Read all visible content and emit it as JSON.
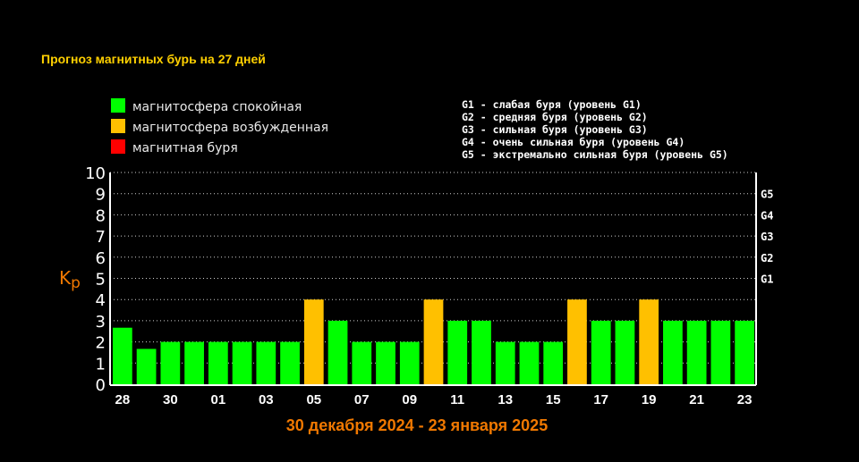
{
  "chart_data": {
    "type": "bar",
    "title": "Прогноз магнитных бурь на 27 дней",
    "xlabel": "30 декабря 2024 - 23 января 2025",
    "ylabel": "Kp",
    "ylim": [
      0,
      10
    ],
    "yticks": [
      "0",
      "1",
      "2",
      "3",
      "4",
      "5",
      "6",
      "7",
      "8",
      "9",
      "10"
    ],
    "grid": true,
    "legend": [
      {
        "label": "магнитосфера спокойная",
        "color": "#00ff00"
      },
      {
        "label": "магнитосфера возбужденная",
        "color": "#ffc000"
      },
      {
        "label": "магнитная буря",
        "color": "#ff0000"
      }
    ],
    "storm_levels": [
      "G1 - слабая буря (уровень G1)",
      "G2 - средняя буря (уровень G2)",
      "G3 - сильная буря (уровень G3)",
      "G4 - очень сильная буря (уровень G4)",
      "G5 - экстремально сильная буря (уровень G5)"
    ],
    "g_ticks": [
      {
        "label": "G1",
        "value": 5
      },
      {
        "label": "G2",
        "value": 6
      },
      {
        "label": "G3",
        "value": 7
      },
      {
        "label": "G4",
        "value": 8
      },
      {
        "label": "G5",
        "value": 9
      }
    ],
    "x_tick_labels": [
      "28",
      "30",
      "01",
      "03",
      "05",
      "07",
      "09",
      "11",
      "13",
      "15",
      "17",
      "19",
      "21",
      "23"
    ],
    "values": [
      2.67,
      1.67,
      2,
      2,
      2,
      2,
      2,
      2,
      4,
      3,
      2,
      2,
      2,
      4,
      3,
      3,
      2,
      2,
      2,
      4,
      3,
      3,
      4,
      3,
      3,
      3,
      3
    ],
    "bar_colors": [
      "#00ff00",
      "#00ff00",
      "#00ff00",
      "#00ff00",
      "#00ff00",
      "#00ff00",
      "#00ff00",
      "#00ff00",
      "#ffc000",
      "#00ff00",
      "#00ff00",
      "#00ff00",
      "#00ff00",
      "#ffc000",
      "#00ff00",
      "#00ff00",
      "#00ff00",
      "#00ff00",
      "#00ff00",
      "#ffc000",
      "#00ff00",
      "#00ff00",
      "#ffc000",
      "#00ff00",
      "#00ff00",
      "#00ff00",
      "#00ff00"
    ]
  }
}
